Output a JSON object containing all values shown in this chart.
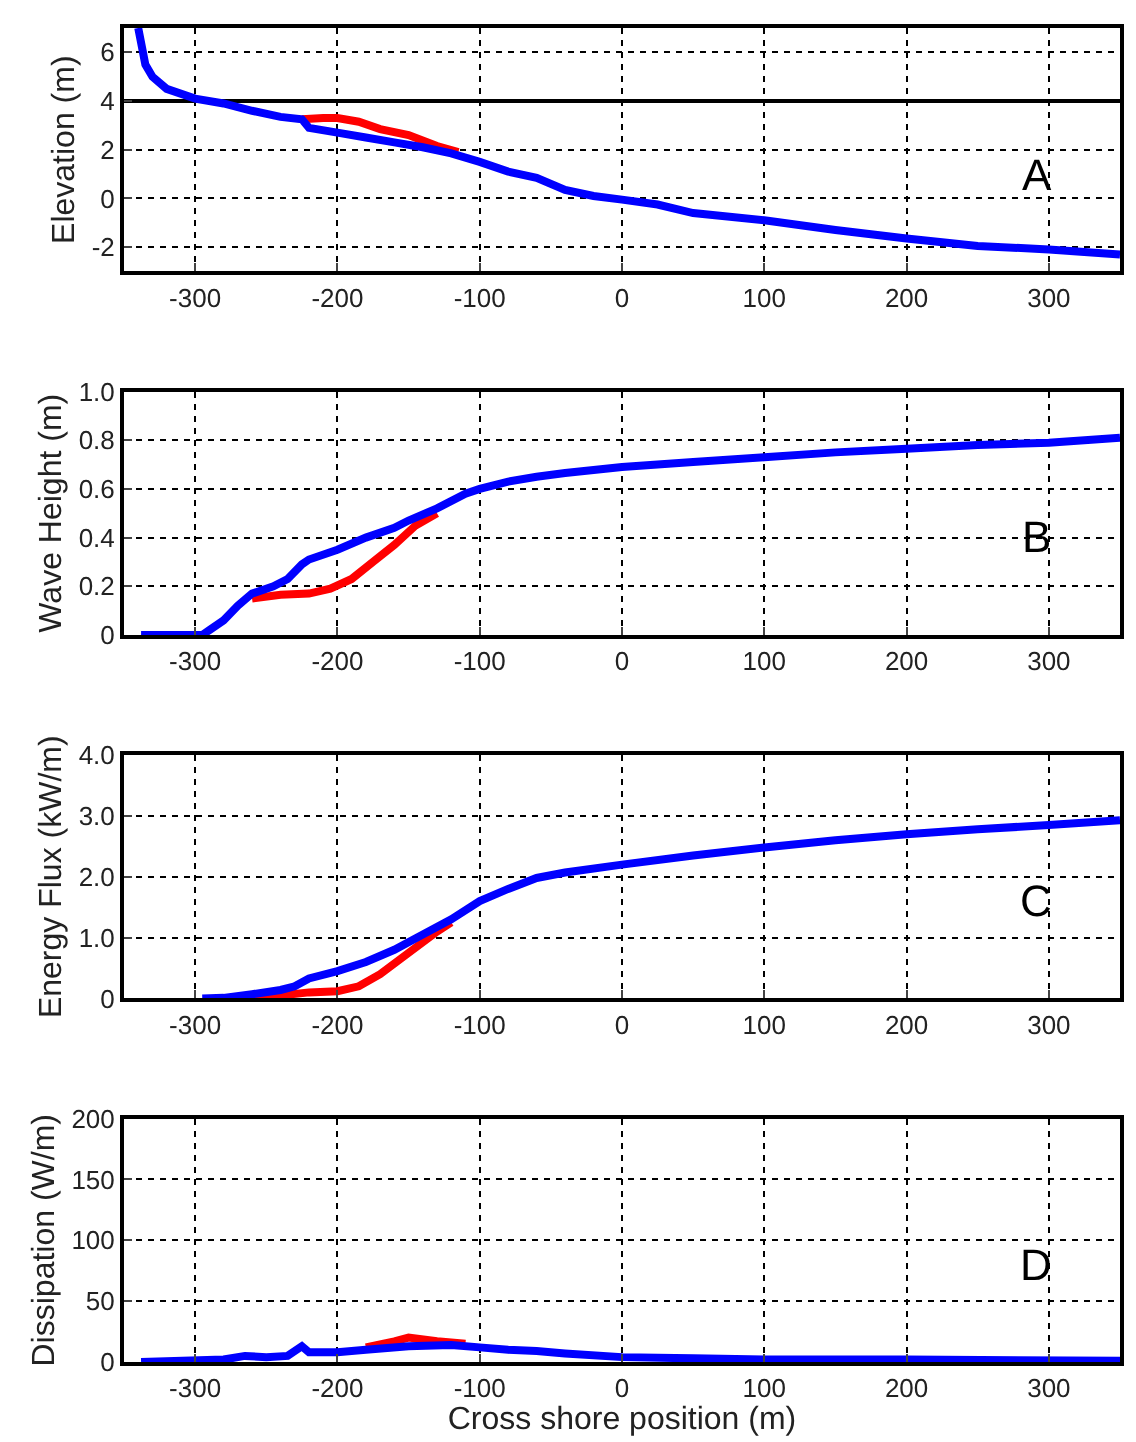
{
  "chart_data": [
    {
      "type": "line",
      "ylabel": "Elevation (m)",
      "xlim": [
        -350,
        350
      ],
      "xticks": [
        -300,
        -200,
        -100,
        0,
        100,
        200,
        300
      ],
      "ylim": [
        -3,
        7
      ],
      "yticks": [
        -2,
        0,
        2,
        4,
        6
      ],
      "grid": true,
      "annotations": [
        "A"
      ],
      "ref_lines": [
        {
          "axis": "y",
          "value": 4,
          "color": "#000000"
        }
      ],
      "series": [
        {
          "color": "#ff0000",
          "x": [
            -225,
            -210,
            -200,
            -185,
            -170,
            -150,
            -130,
            -115
          ],
          "values": [
            3.25,
            3.3,
            3.3,
            3.15,
            2.85,
            2.6,
            2.15,
            1.9
          ]
        },
        {
          "color": "#0000ff",
          "x": [
            -340,
            -335,
            -330,
            -320,
            -300,
            -280,
            -260,
            -240,
            -225,
            -220,
            -200,
            -180,
            -160,
            -140,
            -120,
            -100,
            -80,
            -60,
            -40,
            -20,
            0,
            25,
            50,
            100,
            150,
            200,
            250,
            300,
            350
          ],
          "values": [
            7,
            5.5,
            5,
            4.5,
            4.1,
            3.9,
            3.6,
            3.35,
            3.25,
            2.9,
            2.7,
            2.5,
            2.3,
            2.1,
            1.85,
            1.5,
            1.1,
            0.85,
            0.35,
            0.1,
            -0.05,
            -0.25,
            -0.6,
            -0.9,
            -1.3,
            -1.65,
            -1.95,
            -2.1,
            -2.3
          ]
        }
      ]
    },
    {
      "type": "line",
      "ylabel": "Wave Height (m)",
      "xlim": [
        -350,
        350
      ],
      "xticks": [
        -300,
        -200,
        -100,
        0,
        100,
        200,
        300
      ],
      "ylim": [
        0,
        1
      ],
      "yticks": [
        0,
        0.2,
        0.4,
        0.6,
        0.8,
        {
          "value": 1,
          "label": "1.0"
        }
      ],
      "grid": true,
      "annotations": [
        "B"
      ],
      "series": [
        {
          "color": "#ff0000",
          "x": [
            -260,
            -240,
            -220,
            -205,
            -190,
            -175,
            -160,
            -145,
            -130
          ],
          "values": [
            0.15,
            0.165,
            0.17,
            0.19,
            0.23,
            0.3,
            0.37,
            0.45,
            0.5
          ]
        },
        {
          "color": "#0000ff",
          "x": [
            -338,
            -295,
            -290,
            -280,
            -270,
            -260,
            -245,
            -235,
            -225,
            -220,
            -200,
            -180,
            -160,
            -150,
            -130,
            -110,
            -100,
            -80,
            -60,
            -40,
            0,
            50,
            100,
            150,
            200,
            250,
            300,
            350
          ],
          "values": [
            0,
            0,
            0.02,
            0.06,
            0.12,
            0.17,
            0.2,
            0.23,
            0.29,
            0.31,
            0.35,
            0.4,
            0.44,
            0.47,
            0.52,
            0.58,
            0.6,
            0.63,
            0.65,
            0.665,
            0.69,
            0.71,
            0.73,
            0.75,
            0.765,
            0.78,
            0.79,
            0.81
          ]
        }
      ]
    },
    {
      "type": "line",
      "ylabel": "Energy Flux (kW/m)",
      "xlim": [
        -350,
        350
      ],
      "xticks": [
        -300,
        -200,
        -100,
        0,
        100,
        200,
        300
      ],
      "ylim": [
        0,
        4
      ],
      "yticks": [
        0,
        {
          "value": 1,
          "label": "1.0"
        },
        {
          "value": 2,
          "label": "2.0"
        },
        {
          "value": 3,
          "label": "3.0"
        },
        {
          "value": 4,
          "label": "4.0"
        }
      ],
      "grid": true,
      "annotations": [
        "C"
      ],
      "series": [
        {
          "color": "#ff0000",
          "x": [
            -260,
            -240,
            -220,
            -200,
            -185,
            -170,
            -150,
            -130,
            -120
          ],
          "values": [
            0,
            0.05,
            0.1,
            0.12,
            0.2,
            0.4,
            0.75,
            1.1,
            1.25
          ]
        },
        {
          "color": "#0000ff",
          "x": [
            -295,
            -280,
            -260,
            -240,
            -230,
            -220,
            -200,
            -180,
            -160,
            -140,
            -120,
            -100,
            -80,
            -60,
            -40,
            0,
            50,
            100,
            150,
            200,
            250,
            300,
            350
          ],
          "values": [
            0,
            0.01,
            0.07,
            0.14,
            0.2,
            0.33,
            0.45,
            0.6,
            0.8,
            1.05,
            1.3,
            1.6,
            1.8,
            1.98,
            2.07,
            2.2,
            2.35,
            2.48,
            2.6,
            2.7,
            2.78,
            2.85,
            2.93
          ]
        }
      ]
    },
    {
      "type": "line",
      "ylabel": "Dissipation (W/m)",
      "xlabel": "Cross shore position (m)",
      "xlim": [
        -350,
        350
      ],
      "xticks": [
        -300,
        -200,
        -100,
        0,
        100,
        200,
        300
      ],
      "ylim": [
        0,
        200
      ],
      "yticks": [
        0,
        50,
        100,
        150,
        200
      ],
      "grid": true,
      "annotations": [
        "D"
      ],
      "series": [
        {
          "color": "#ff0000",
          "x": [
            -180,
            -160,
            -150,
            -130,
            -110
          ],
          "values": [
            12,
            17,
            20,
            17,
            15
          ]
        },
        {
          "color": "#0000ff",
          "x": [
            -338,
            -280,
            -265,
            -250,
            -235,
            -225,
            -220,
            -200,
            -180,
            -150,
            -120,
            -100,
            -80,
            -60,
            -40,
            0,
            50,
            100,
            200,
            350
          ],
          "values": [
            0,
            2,
            5,
            4,
            5,
            13,
            8,
            8,
            10,
            13,
            14,
            12,
            10,
            9,
            7,
            4,
            3,
            2,
            2,
            1
          ]
        }
      ]
    }
  ]
}
